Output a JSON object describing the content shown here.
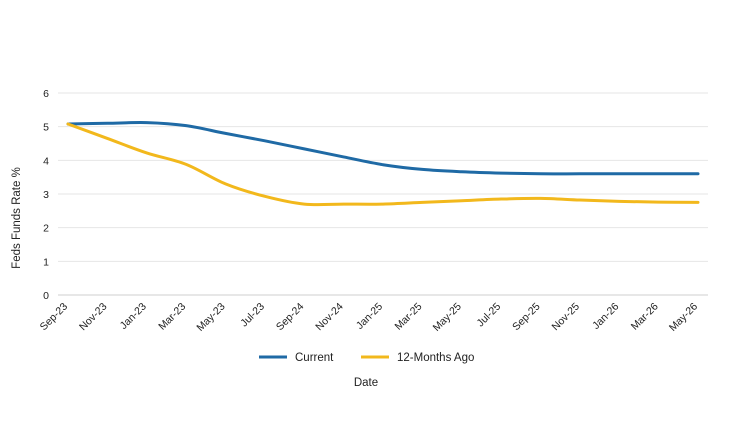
{
  "chart_data": {
    "type": "line",
    "title": "",
    "xlabel": "Date",
    "ylabel": "Feds Funds Rate %",
    "ylim": [
      0,
      6
    ],
    "yticks": [
      0,
      1,
      2,
      3,
      4,
      5,
      6
    ],
    "grid": "horizontal",
    "legend_position": "bottom",
    "categories": [
      "Sep-23",
      "Nov-23",
      "Jan-23",
      "Mar-23",
      "May-23",
      "Jul-23",
      "Sep-24",
      "Nov-24",
      "Jan-25",
      "Mar-25",
      "May-25",
      "Jul-25",
      "Sep-25",
      "Nov-25",
      "Jan-26",
      "Mar-26",
      "May-26"
    ],
    "series": [
      {
        "name": "Current",
        "color": "#1f6aa5",
        "values": [
          5.08,
          5.1,
          5.12,
          5.03,
          4.8,
          4.58,
          4.34,
          4.1,
          3.87,
          3.73,
          3.66,
          3.62,
          3.6,
          3.6,
          3.6,
          3.6,
          3.6
        ]
      },
      {
        "name": "12-Months Ago",
        "color": "#f2b81c",
        "values": [
          5.08,
          4.65,
          4.22,
          3.88,
          3.3,
          2.93,
          2.7,
          2.7,
          2.7,
          2.75,
          2.8,
          2.85,
          2.87,
          2.82,
          2.78,
          2.76,
          2.75
        ]
      }
    ]
  }
}
